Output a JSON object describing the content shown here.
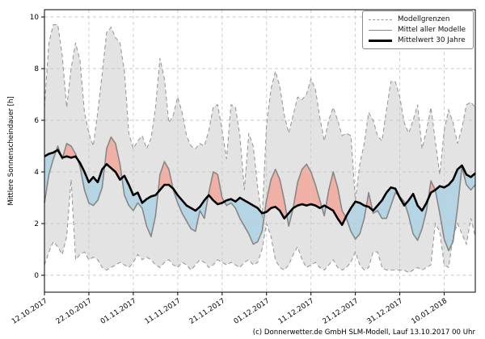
{
  "figure": {
    "ylabel": "Mittlere Sonnenscheindauer [h]",
    "attribution": "(c) Donnerwetter.de GmbH SLM-Modell, Lauf 13.10.2017 00 Uhr"
  },
  "legend": {
    "items": [
      {
        "label": "Modellgrenzen",
        "style": "dashed-gray"
      },
      {
        "label": "Mittel aller Modelle",
        "style": "solid-gray"
      },
      {
        "label": "Mittelwert 30 Jahre",
        "style": "solid-black-thick"
      }
    ]
  },
  "chart_data": {
    "type": "line",
    "title": "",
    "xlabel": "",
    "ylabel": "Mittlere Sonnenscheindauer [h]",
    "x_unit": "days since 12.10.2017",
    "xlim_days": [
      0,
      97
    ],
    "ylim": [
      -0.7,
      10.3
    ],
    "yticks": [
      0,
      2,
      4,
      6,
      8,
      10
    ],
    "x_tick_days": [
      0,
      10,
      20,
      30,
      40,
      50,
      60,
      70,
      80,
      90
    ],
    "x_tick_labels": [
      "12.10.2017",
      "22.10.2017",
      "01.11.2017",
      "11.11.2017",
      "21.11.2017",
      "01.12.2017",
      "11.12.2017",
      "21.12.2017",
      "31.12.2017",
      "10.01.2018"
    ],
    "grid": true,
    "legend_position": "upper right",
    "colors": {
      "envelope_fill": "#e3e3e3",
      "envelope_line": "#9a9a9a",
      "grid_line": "#c9c9c9",
      "model_mean_line": "#878787",
      "mean_30y_line": "#000000",
      "above_normal_fill": "rgba(251,134,116,0.55)",
      "below_normal_fill": "rgba(144,202,231,0.55)",
      "frame": "#000000"
    },
    "series": [
      {
        "name": "Modellgrenzen (oberer Rand)",
        "role": "envelope_upper",
        "values": [
          6.5,
          9.0,
          9.7,
          9.7,
          8.5,
          6.5,
          8.0,
          9.0,
          8.3,
          6.3,
          5.5,
          5.0,
          6.3,
          7.8,
          9.4,
          9.6,
          9.2,
          9.0,
          7.9,
          5.5,
          4.9,
          5.2,
          5.4,
          4.9,
          5.3,
          6.5,
          8.4,
          7.6,
          5.9,
          6.2,
          6.9,
          6.3,
          5.4,
          5.0,
          4.9,
          5.1,
          5.0,
          5.6,
          6.5,
          6.6,
          5.6,
          4.5,
          6.6,
          6.5,
          5.4,
          3.3,
          5.5,
          5.0,
          3.4,
          2.2,
          5.8,
          7.2,
          7.9,
          7.3,
          6.2,
          5.5,
          6.2,
          6.9,
          6.8,
          7.0,
          7.6,
          7.2,
          6.1,
          5.2,
          6.0,
          6.5,
          6.0,
          5.4,
          5.5,
          5.4,
          2.9,
          4.3,
          5.1,
          6.3,
          6.0,
          5.4,
          5.2,
          6.4,
          7.5,
          7.5,
          6.9,
          5.9,
          5.5,
          6.0,
          6.6,
          4.9,
          5.6,
          6.5,
          5.2,
          3.9,
          5.6,
          6.4,
          5.9,
          5.1,
          5.7,
          6.6,
          6.7,
          6.5
        ]
      },
      {
        "name": "Modellgrenzen (unterer Rand)",
        "role": "envelope_lower",
        "values": [
          0.4,
          0.9,
          1.3,
          1.1,
          0.8,
          1.5,
          3.7,
          0.6,
          0.8,
          0.9,
          0.6,
          0.7,
          0.6,
          0.3,
          0.2,
          0.3,
          0.4,
          0.5,
          0.4,
          0.3,
          0.5,
          0.8,
          0.6,
          0.7,
          0.6,
          0.4,
          0.3,
          0.5,
          0.6,
          0.4,
          0.3,
          0.5,
          0.4,
          0.2,
          0.4,
          0.6,
          0.5,
          0.3,
          0.4,
          0.6,
          0.5,
          0.4,
          0.5,
          0.4,
          0.3,
          0.5,
          0.6,
          0.4,
          0.5,
          1.0,
          2.0,
          1.5,
          0.6,
          0.3,
          0.2,
          0.4,
          0.8,
          1.1,
          0.6,
          0.3,
          0.4,
          0.5,
          0.3,
          0.2,
          0.4,
          0.6,
          0.3,
          0.2,
          0.3,
          0.5,
          0.9,
          0.4,
          0.2,
          0.3,
          0.9,
          0.9,
          0.3,
          0.2,
          0.2,
          0.2,
          0.2,
          0.2,
          0.1,
          0.2,
          0.3,
          0.2,
          0.3,
          0.4,
          2.0,
          1.7,
          0.4,
          0.3,
          1.5,
          2.0,
          1.6,
          1.2,
          2.2,
          1.5
        ]
      },
      {
        "name": "Mittel aller Modelle",
        "role": "model_mean",
        "values": [
          2.8,
          3.9,
          4.5,
          5.0,
          4.5,
          5.1,
          5.0,
          4.7,
          4.2,
          3.3,
          2.8,
          2.7,
          2.9,
          3.4,
          4.9,
          5.35,
          5.1,
          4.3,
          3.1,
          2.7,
          2.5,
          2.8,
          2.6,
          1.9,
          1.5,
          2.3,
          3.9,
          4.4,
          4.1,
          3.3,
          2.8,
          2.4,
          2.1,
          1.8,
          1.7,
          2.5,
          2.2,
          3.2,
          4.0,
          3.9,
          3.0,
          2.7,
          2.8,
          2.6,
          2.2,
          1.9,
          1.6,
          1.2,
          1.3,
          1.7,
          2.9,
          3.7,
          4.1,
          3.7,
          2.9,
          1.9,
          2.6,
          3.6,
          4.1,
          4.3,
          4.0,
          3.5,
          2.9,
          2.3,
          3.3,
          4.0,
          3.4,
          2.5,
          2.2,
          1.7,
          1.4,
          1.6,
          2.2,
          3.2,
          2.4,
          2.5,
          2.2,
          2.2,
          2.7,
          3.2,
          3.05,
          2.85,
          2.3,
          1.6,
          1.35,
          1.8,
          2.5,
          3.65,
          3.3,
          2.4,
          1.4,
          0.95,
          1.3,
          2.6,
          4.2,
          3.5,
          3.3,
          3.5
        ]
      },
      {
        "name": "Mittelwert 30 Jahre",
        "role": "mean_30y",
        "values": [
          4.6,
          4.7,
          4.75,
          4.85,
          4.55,
          4.6,
          4.55,
          4.6,
          4.35,
          4.0,
          3.6,
          3.8,
          3.6,
          4.1,
          4.3,
          4.15,
          4.0,
          3.7,
          3.85,
          3.5,
          3.1,
          3.2,
          2.8,
          2.95,
          3.05,
          3.1,
          3.3,
          3.5,
          3.5,
          3.35,
          3.1,
          2.9,
          2.7,
          2.6,
          2.5,
          2.65,
          2.9,
          3.1,
          2.9,
          2.75,
          2.8,
          2.9,
          2.95,
          2.85,
          3.0,
          2.9,
          2.8,
          2.7,
          2.6,
          2.4,
          2.45,
          2.6,
          2.65,
          2.5,
          2.2,
          2.4,
          2.6,
          2.7,
          2.75,
          2.7,
          2.75,
          2.7,
          2.6,
          2.7,
          2.6,
          2.5,
          2.2,
          1.95,
          2.3,
          2.6,
          2.85,
          2.8,
          2.7,
          2.65,
          2.5,
          2.7,
          2.9,
          3.2,
          3.4,
          3.35,
          3.0,
          2.7,
          2.9,
          3.15,
          2.7,
          2.5,
          2.8,
          3.2,
          3.3,
          3.45,
          3.4,
          3.5,
          3.7,
          4.1,
          4.25,
          3.9,
          3.8,
          3.95
        ]
      }
    ]
  }
}
